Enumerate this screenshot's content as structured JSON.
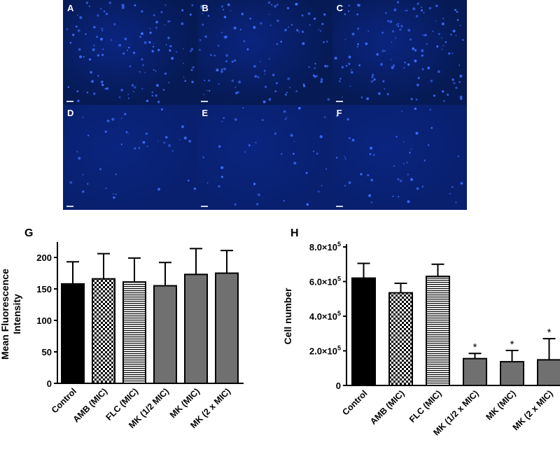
{
  "panels": [
    {
      "label": "A",
      "density": 120
    },
    {
      "label": "B",
      "density": 105
    },
    {
      "label": "C",
      "density": 125
    },
    {
      "label": "D",
      "density": 40
    },
    {
      "label": "E",
      "density": 38
    },
    {
      "label": "F",
      "density": 45
    }
  ],
  "colors": {
    "micro_bg_top": "#061a55",
    "micro_bg_bottom": "#08206e",
    "cell": "#3d6dff",
    "bar_dark": "#000000",
    "bar_gray": "#707070"
  },
  "chart_data": [
    {
      "type": "bar",
      "panel_label": "G",
      "ylabel": "Mean Fluorescence Intensity",
      "categories": [
        "Control",
        "AMB (MIC)",
        "FLC (MIC)",
        "MK (1/2 MIC)",
        "MK (MIC)",
        "MK (2 x MIC)"
      ],
      "values": [
        158,
        166,
        161,
        155,
        173,
        175
      ],
      "errors": [
        35,
        40,
        38,
        37,
        41,
        36
      ],
      "patterns": [
        "solid-black",
        "checker",
        "hstripe",
        "solid-gray",
        "solid-gray",
        "solid-gray"
      ],
      "yticks": [
        "0",
        "50",
        "100",
        "150",
        "200"
      ],
      "ylim": [
        0,
        220
      ]
    },
    {
      "type": "bar",
      "panel_label": "H",
      "ylabel": "Cell number",
      "categories": [
        "Control",
        "AMB (MIC)",
        "FLC (MIC)",
        "MK (1/2 x MIC)",
        "MK (MIC)",
        "MK (2 x MIC)"
      ],
      "values": [
        620000,
        535000,
        630000,
        155000,
        137000,
        148000
      ],
      "errors": [
        85000,
        55000,
        70000,
        30000,
        65000,
        122000
      ],
      "significance": [
        "",
        "",
        "",
        "*",
        "*",
        "*"
      ],
      "patterns": [
        "solid-black",
        "checker",
        "hstripe",
        "solid-gray",
        "solid-gray",
        "solid-gray"
      ],
      "yticks": [
        {
          "value": 0,
          "label": "0"
        },
        {
          "value": 200000,
          "mantissa": "2.0",
          "exp": "5"
        },
        {
          "value": 400000,
          "mantissa": "4.0",
          "exp": "5"
        },
        {
          "value": 600000,
          "mantissa": "6.0",
          "exp": "5"
        },
        {
          "value": 800000,
          "mantissa": "8.0",
          "exp": "5"
        }
      ],
      "ylim": [
        0,
        800000
      ]
    }
  ]
}
